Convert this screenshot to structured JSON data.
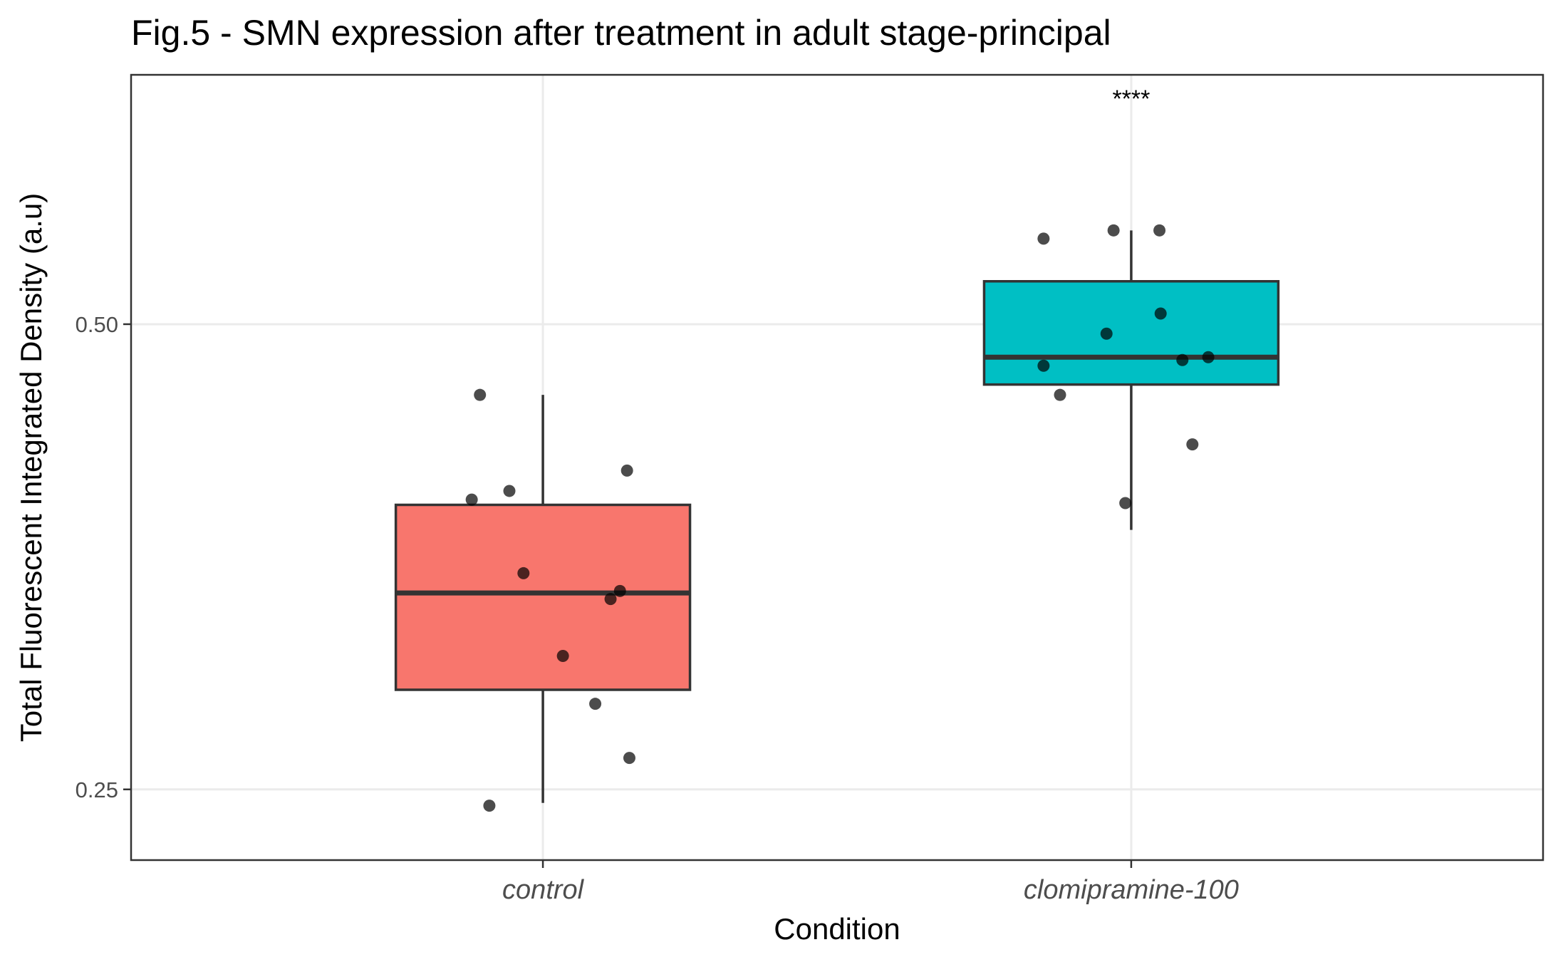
{
  "chart_data": {
    "type": "box",
    "title": "Fig.5 -  SMN expression after treatment in adult stage-principal",
    "xlabel": "Condition",
    "ylabel": "Total Fluorescent Integrated Density (a.u)",
    "categories": [
      "control",
      "clomipramine-100"
    ],
    "y_scale": "log",
    "ylim": [
      0.225,
      0.725
    ],
    "yticks": [
      0.25,
      0.5
    ],
    "ytick_labels": [
      "0.25",
      "0.50"
    ],
    "grid": true,
    "colors": [
      "#F8766D",
      "#00BFC4"
    ],
    "boxes": [
      {
        "category": "control",
        "whisker_low": 0.245,
        "q1": 0.29,
        "median": 0.335,
        "q3": 0.382,
        "whisker_high": 0.45
      },
      {
        "category": "clomipramine-100",
        "whisker_low": 0.368,
        "q1": 0.457,
        "median": 0.476,
        "q3": 0.533,
        "whisker_high": 0.575
      }
    ],
    "points": [
      {
        "category": "control",
        "jitter": -0.107,
        "y": 0.45
      },
      {
        "category": "control",
        "jitter": 0.143,
        "y": 0.402
      },
      {
        "category": "control",
        "jitter": -0.057,
        "y": 0.39
      },
      {
        "category": "control",
        "jitter": -0.121,
        "y": 0.385
      },
      {
        "category": "control",
        "jitter": -0.033,
        "y": 0.345
      },
      {
        "category": "control",
        "jitter": 0.131,
        "y": 0.336
      },
      {
        "category": "control",
        "jitter": 0.115,
        "y": 0.332
      },
      {
        "category": "control",
        "jitter": 0.034,
        "y": 0.305
      },
      {
        "category": "control",
        "jitter": 0.089,
        "y": 0.284
      },
      {
        "category": "control",
        "jitter": 0.147,
        "y": 0.262
      },
      {
        "category": "control",
        "jitter": -0.091,
        "y": 0.244
      },
      {
        "category": "clomipramine-100",
        "jitter": -0.03,
        "y": 0.575
      },
      {
        "category": "clomipramine-100",
        "jitter": 0.048,
        "y": 0.575
      },
      {
        "category": "clomipramine-100",
        "jitter": -0.149,
        "y": 0.568
      },
      {
        "category": "clomipramine-100",
        "jitter": 0.05,
        "y": 0.508
      },
      {
        "category": "clomipramine-100",
        "jitter": -0.042,
        "y": 0.493
      },
      {
        "category": "clomipramine-100",
        "jitter": 0.131,
        "y": 0.476
      },
      {
        "category": "clomipramine-100",
        "jitter": 0.087,
        "y": 0.474
      },
      {
        "category": "clomipramine-100",
        "jitter": -0.149,
        "y": 0.47
      },
      {
        "category": "clomipramine-100",
        "jitter": -0.121,
        "y": 0.45
      },
      {
        "category": "clomipramine-100",
        "jitter": 0.104,
        "y": 0.418
      },
      {
        "category": "clomipramine-100",
        "jitter": -0.01,
        "y": 0.383
      }
    ],
    "annotations": [
      {
        "category": "clomipramine-100",
        "text": "****",
        "y": 0.7
      }
    ]
  }
}
